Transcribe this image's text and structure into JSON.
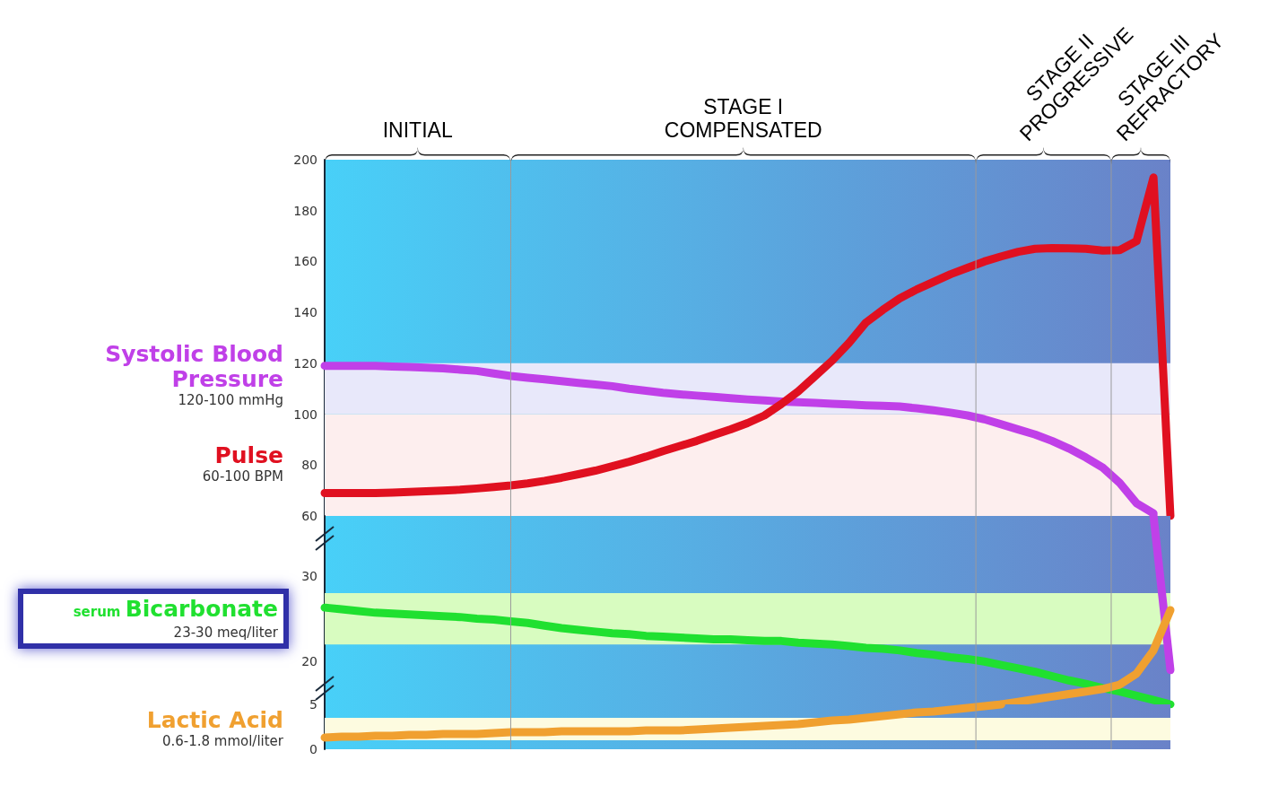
{
  "chart_data": [
    {
      "type": "line",
      "ylim": [
        60,
        200
      ],
      "yticks": [
        60,
        80,
        100,
        120,
        140,
        160,
        180,
        200
      ],
      "tick_labels": "y",
      "line_style": "solid",
      "categories": [
        null,
        null,
        null,
        null,
        null,
        null,
        null,
        null,
        null,
        null,
        null,
        null,
        null,
        null,
        null,
        null,
        null,
        null,
        null,
        null,
        null,
        null,
        null,
        null,
        null,
        null,
        null,
        null,
        null,
        null,
        null,
        null,
        null,
        null,
        null,
        null,
        null,
        null,
        null,
        null,
        null,
        null,
        null,
        null,
        null,
        null,
        null,
        null,
        null,
        null,
        null
      ],
      "annotations": [
        "INITIAL",
        "STAGE I\nCOMPENSATED",
        "STAGE II\nPROGRESSIVE",
        "STAGE III\nREFRACTORY",
        "120-100 mmHg",
        "60-100 BPM"
      ],
      "bands": [
        {
          "axis": "y",
          "from": 100,
          "to": 120,
          "color": "#e8e8fa"
        },
        {
          "axis": "y",
          "from": 60,
          "to": 100,
          "color": "#fdeeee"
        }
      ],
      "series": [
        {
          "name": "Systolic Blood Pressure",
          "color": "#c040e8",
          "values": [
            119,
            119,
            119,
            119,
            118.7,
            118.5,
            118.3,
            118,
            117.5,
            117,
            116,
            115,
            114.3,
            113.7,
            113,
            112.3,
            111.7,
            111,
            110,
            109.2,
            108.4,
            107.8,
            107.3,
            106.8,
            106.3,
            105.8,
            105.4,
            105,
            104.7,
            104.4,
            104.1,
            103.8,
            103.5,
            103.3,
            103,
            102.3,
            101.5,
            100.6,
            99.5,
            98,
            96,
            94,
            92,
            89.5,
            86.5,
            83,
            79,
            73,
            65,
            61,
            null
          ]
        },
        {
          "name": "Pulse",
          "color": "#e01020",
          "values": [
            69,
            69,
            69,
            69,
            69.2,
            69.4,
            69.7,
            70,
            70.3,
            70.8,
            71.4,
            72,
            72.8,
            73.8,
            75,
            76.4,
            77.8,
            79.5,
            81.3,
            83.3,
            85.5,
            87.5,
            89.5,
            91.8,
            94,
            96.5,
            99.5,
            104,
            109,
            115,
            121,
            128,
            136,
            141,
            145.5,
            149,
            152,
            155,
            157.5,
            160,
            162,
            163.8,
            165,
            165.3,
            165.2,
            165,
            164.3,
            164.5,
            168,
            193,
            60
          ]
        }
      ]
    },
    {
      "type": "line",
      "ylim": [
        15,
        37
      ],
      "yticks": [
        20,
        30
      ],
      "tick_labels": "y",
      "line_style": "solid",
      "categories": [
        null,
        null,
        null,
        null,
        null,
        null,
        null,
        null,
        null,
        null,
        null,
        null,
        null,
        null,
        null,
        null,
        null,
        null,
        null,
        null,
        null,
        null,
        null,
        null,
        null,
        null,
        null,
        null,
        null,
        null,
        null,
        null,
        null,
        null,
        null,
        null,
        null,
        null,
        null,
        null,
        null,
        null,
        null,
        null,
        null,
        null,
        null,
        null,
        null,
        null,
        null
      ],
      "annotations": [
        "23-30 meq/liter"
      ],
      "bands": [
        {
          "axis": "y",
          "from": 22,
          "to": 28,
          "color": "#d8fcc0"
        }
      ],
      "series": [
        {
          "name": "serum Bicarbonate",
          "color": "#20e030",
          "values": [
            26.3,
            26.1,
            25.9,
            25.7,
            25.6,
            25.5,
            25.4,
            25.3,
            25.2,
            25,
            24.9,
            24.7,
            24.5,
            24.2,
            23.9,
            23.7,
            23.5,
            23.3,
            23.2,
            23,
            22.9,
            22.8,
            22.7,
            22.6,
            22.6,
            22.5,
            22.4,
            22.4,
            22.2,
            22.1,
            22,
            21.8,
            21.6,
            21.5,
            21.3,
            21,
            20.8,
            20.5,
            20.3,
            20,
            19.6,
            19.2,
            18.8,
            18.3,
            17.8,
            17.4,
            16.9,
            16.5,
            16,
            15.5,
            15
          ]
        },
        {
          "color": "#c040e8",
          "values": [
            null,
            null,
            null,
            null,
            null,
            null,
            null,
            null,
            null,
            null,
            null,
            null,
            null,
            null,
            null,
            null,
            null,
            null,
            null,
            null,
            null,
            null,
            null,
            null,
            null,
            null,
            null,
            null,
            null,
            null,
            null,
            null,
            null,
            null,
            null,
            null,
            null,
            null,
            null,
            null,
            null,
            null,
            null,
            null,
            null,
            null,
            null,
            null,
            null,
            37,
            19
          ]
        },
        {
          "color": "#f0a030",
          "values": [
            null,
            null,
            null,
            null,
            null,
            null,
            null,
            null,
            null,
            null,
            null,
            null,
            null,
            null,
            null,
            null,
            null,
            null,
            null,
            null,
            null,
            null,
            null,
            null,
            null,
            null,
            null,
            null,
            null,
            null,
            null,
            null,
            null,
            null,
            null,
            null,
            null,
            null,
            null,
            null,
            15,
            15.3,
            15.6,
            15.9,
            16.2,
            16.5,
            16.8,
            17.3,
            18.6,
            21.3,
            26
          ]
        }
      ]
    },
    {
      "type": "line",
      "ylim": [
        0,
        5
      ],
      "yticks": [
        0,
        5
      ],
      "tick_labels": "y",
      "line_style": "solid",
      "categories": [
        null,
        null,
        null,
        null,
        null,
        null,
        null,
        null,
        null,
        null,
        null,
        null,
        null,
        null,
        null,
        null,
        null,
        null,
        null,
        null,
        null,
        null,
        null,
        null,
        null,
        null,
        null,
        null,
        null,
        null,
        null,
        null,
        null,
        null,
        null,
        null,
        null,
        null,
        null,
        null,
        null,
        null,
        null,
        null,
        null,
        null,
        null,
        null,
        null,
        null,
        null
      ],
      "annotations": [
        "0.6-1.8 mmol/liter"
      ],
      "bands": [
        {
          "axis": "y",
          "from": 1,
          "to": 3.5,
          "color": "#fdfbe0"
        }
      ],
      "series": [
        {
          "name": "Lactic Acid",
          "color": "#f0a030",
          "values": [
            1.3,
            1.4,
            1.4,
            1.5,
            1.5,
            1.6,
            1.6,
            1.7,
            1.7,
            1.7,
            1.8,
            1.9,
            1.9,
            1.9,
            2,
            2,
            2,
            2,
            2,
            2.1,
            2.1,
            2.1,
            2.2,
            2.3,
            2.4,
            2.5,
            2.6,
            2.7,
            2.8,
            3,
            3.2,
            3.3,
            3.5,
            3.7,
            3.9,
            4.1,
            4.2,
            4.4,
            4.6,
            4.8,
            5,
            null,
            null,
            null,
            null,
            null,
            null,
            null,
            null,
            null,
            null
          ]
        }
      ]
    }
  ]
}
